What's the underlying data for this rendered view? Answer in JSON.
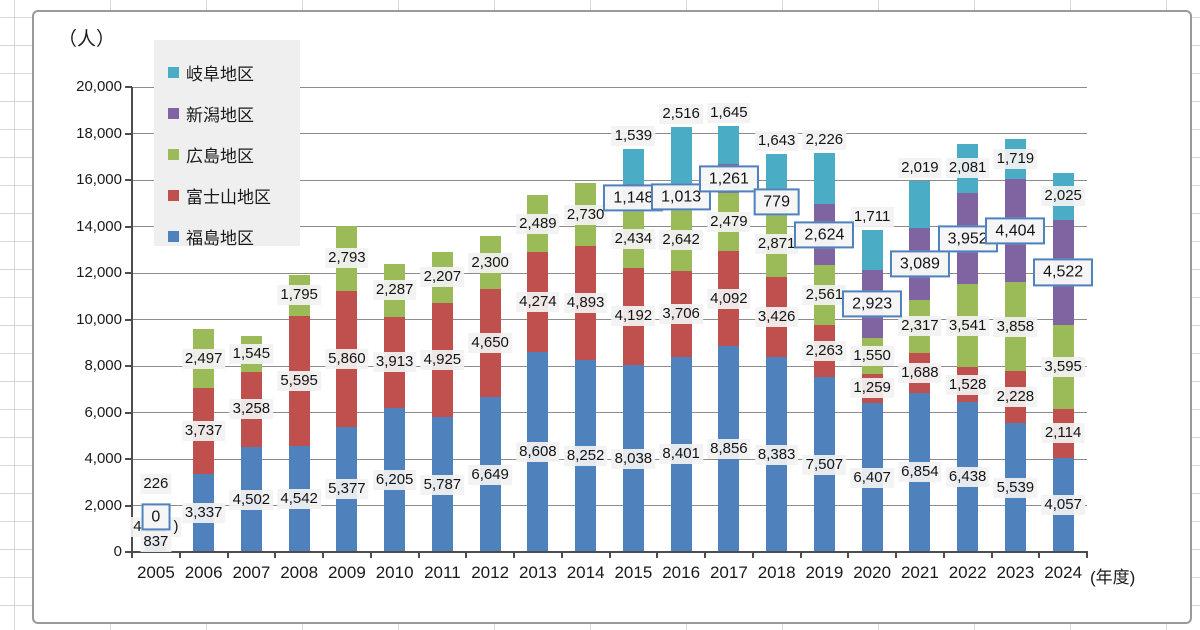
{
  "y_axis": {
    "units_label": "（人）",
    "min": 0,
    "max": 20000,
    "step": 2000,
    "tick_labels": [
      "0",
      "2,000",
      "4,000",
      "6,000",
      "8,000",
      "10,000",
      "12,000",
      "14,000",
      "16,000",
      "18,000",
      "20,000"
    ]
  },
  "x_axis": {
    "suffix_label": "(年度)",
    "categories": [
      "2005",
      "2006",
      "2007",
      "2008",
      "2009",
      "2010",
      "2011",
      "2012",
      "2013",
      "2014",
      "2015",
      "2016",
      "2017",
      "2018",
      "2019",
      "2020",
      "2021",
      "2022",
      "2023",
      "2024"
    ]
  },
  "legend": {
    "position": "upper-left",
    "items": [
      {
        "label": "岐阜地区",
        "color": "#4bacc6"
      },
      {
        "label": "新潟地区",
        "color": "#8064a2"
      },
      {
        "label": "広島地区",
        "color": "#9bbb59"
      },
      {
        "label": "富士山地区",
        "color": "#c0504d"
      },
      {
        "label": "福島地区",
        "color": "#4f81bd"
      }
    ]
  },
  "chart_data": {
    "type": "bar",
    "stacked": true,
    "grid": true,
    "ylim": [
      0,
      20000
    ],
    "categories": [
      "2005",
      "2006",
      "2007",
      "2008",
      "2009",
      "2010",
      "2011",
      "2012",
      "2013",
      "2014",
      "2015",
      "2016",
      "2017",
      "2018",
      "2019",
      "2020",
      "2021",
      "2022",
      "2023",
      "2024"
    ],
    "series": [
      {
        "name": "福島地区",
        "color": "#4f81bd",
        "values": [
          837,
          3337,
          4502,
          4542,
          5377,
          6205,
          5787,
          6649,
          8608,
          8252,
          8038,
          8401,
          8856,
          8383,
          7507,
          6407,
          6854,
          6438,
          5539,
          4057
        ]
      },
      {
        "name": "富士山地区",
        "color": "#c0504d",
        "values": [
          450,
          3737,
          3258,
          5595,
          5860,
          3913,
          4925,
          4650,
          4274,
          4893,
          4192,
          3706,
          4092,
          3426,
          2263,
          1259,
          1688,
          1528,
          2228,
          2114
        ],
        "label_obscured_2005": true
      },
      {
        "name": "広島地区",
        "color": "#9bbb59",
        "values": [
          226,
          2497,
          1545,
          1795,
          2793,
          2287,
          2207,
          2300,
          2489,
          2730,
          2434,
          2642,
          2479,
          2871,
          2561,
          1550,
          2317,
          3541,
          3858,
          3595
        ]
      },
      {
        "name": "新潟地区",
        "color": "#8064a2",
        "label_style": "boxed",
        "values": [
          0,
          0,
          0,
          0,
          0,
          0,
          0,
          0,
          0,
          0,
          1148,
          1013,
          1261,
          779,
          2624,
          2923,
          3089,
          3952,
          4404,
          4522
        ]
      },
      {
        "name": "岐阜地区",
        "color": "#4bacc6",
        "values": [
          0,
          0,
          0,
          0,
          0,
          0,
          0,
          0,
          0,
          0,
          1539,
          2516,
          1645,
          1643,
          2226,
          1711,
          2019,
          2081,
          1719,
          2025
        ]
      }
    ],
    "annotations": {
      "boxed_zero_2005": "0",
      "obscured_label_2005_fragments": {
        "left": "4",
        "right": ")"
      }
    },
    "label_layout": {
      "岐阜地区": {
        "above_top_years": [
          "2015",
          "2016",
          "2017",
          "2018",
          "2019",
          "2020",
          "2021"
        ]
      },
      "広島地区": {
        "dy": {
          "2005": -35
        }
      },
      "新潟地区": {
        "boxed": true,
        "boxed_zero_year": "2005"
      }
    }
  },
  "styles": {
    "box_border_color": "#4f81bd",
    "label_background": "#f2f2f2",
    "grid_color": "#8c8c8c",
    "axis_color": "#4d4d4d"
  }
}
